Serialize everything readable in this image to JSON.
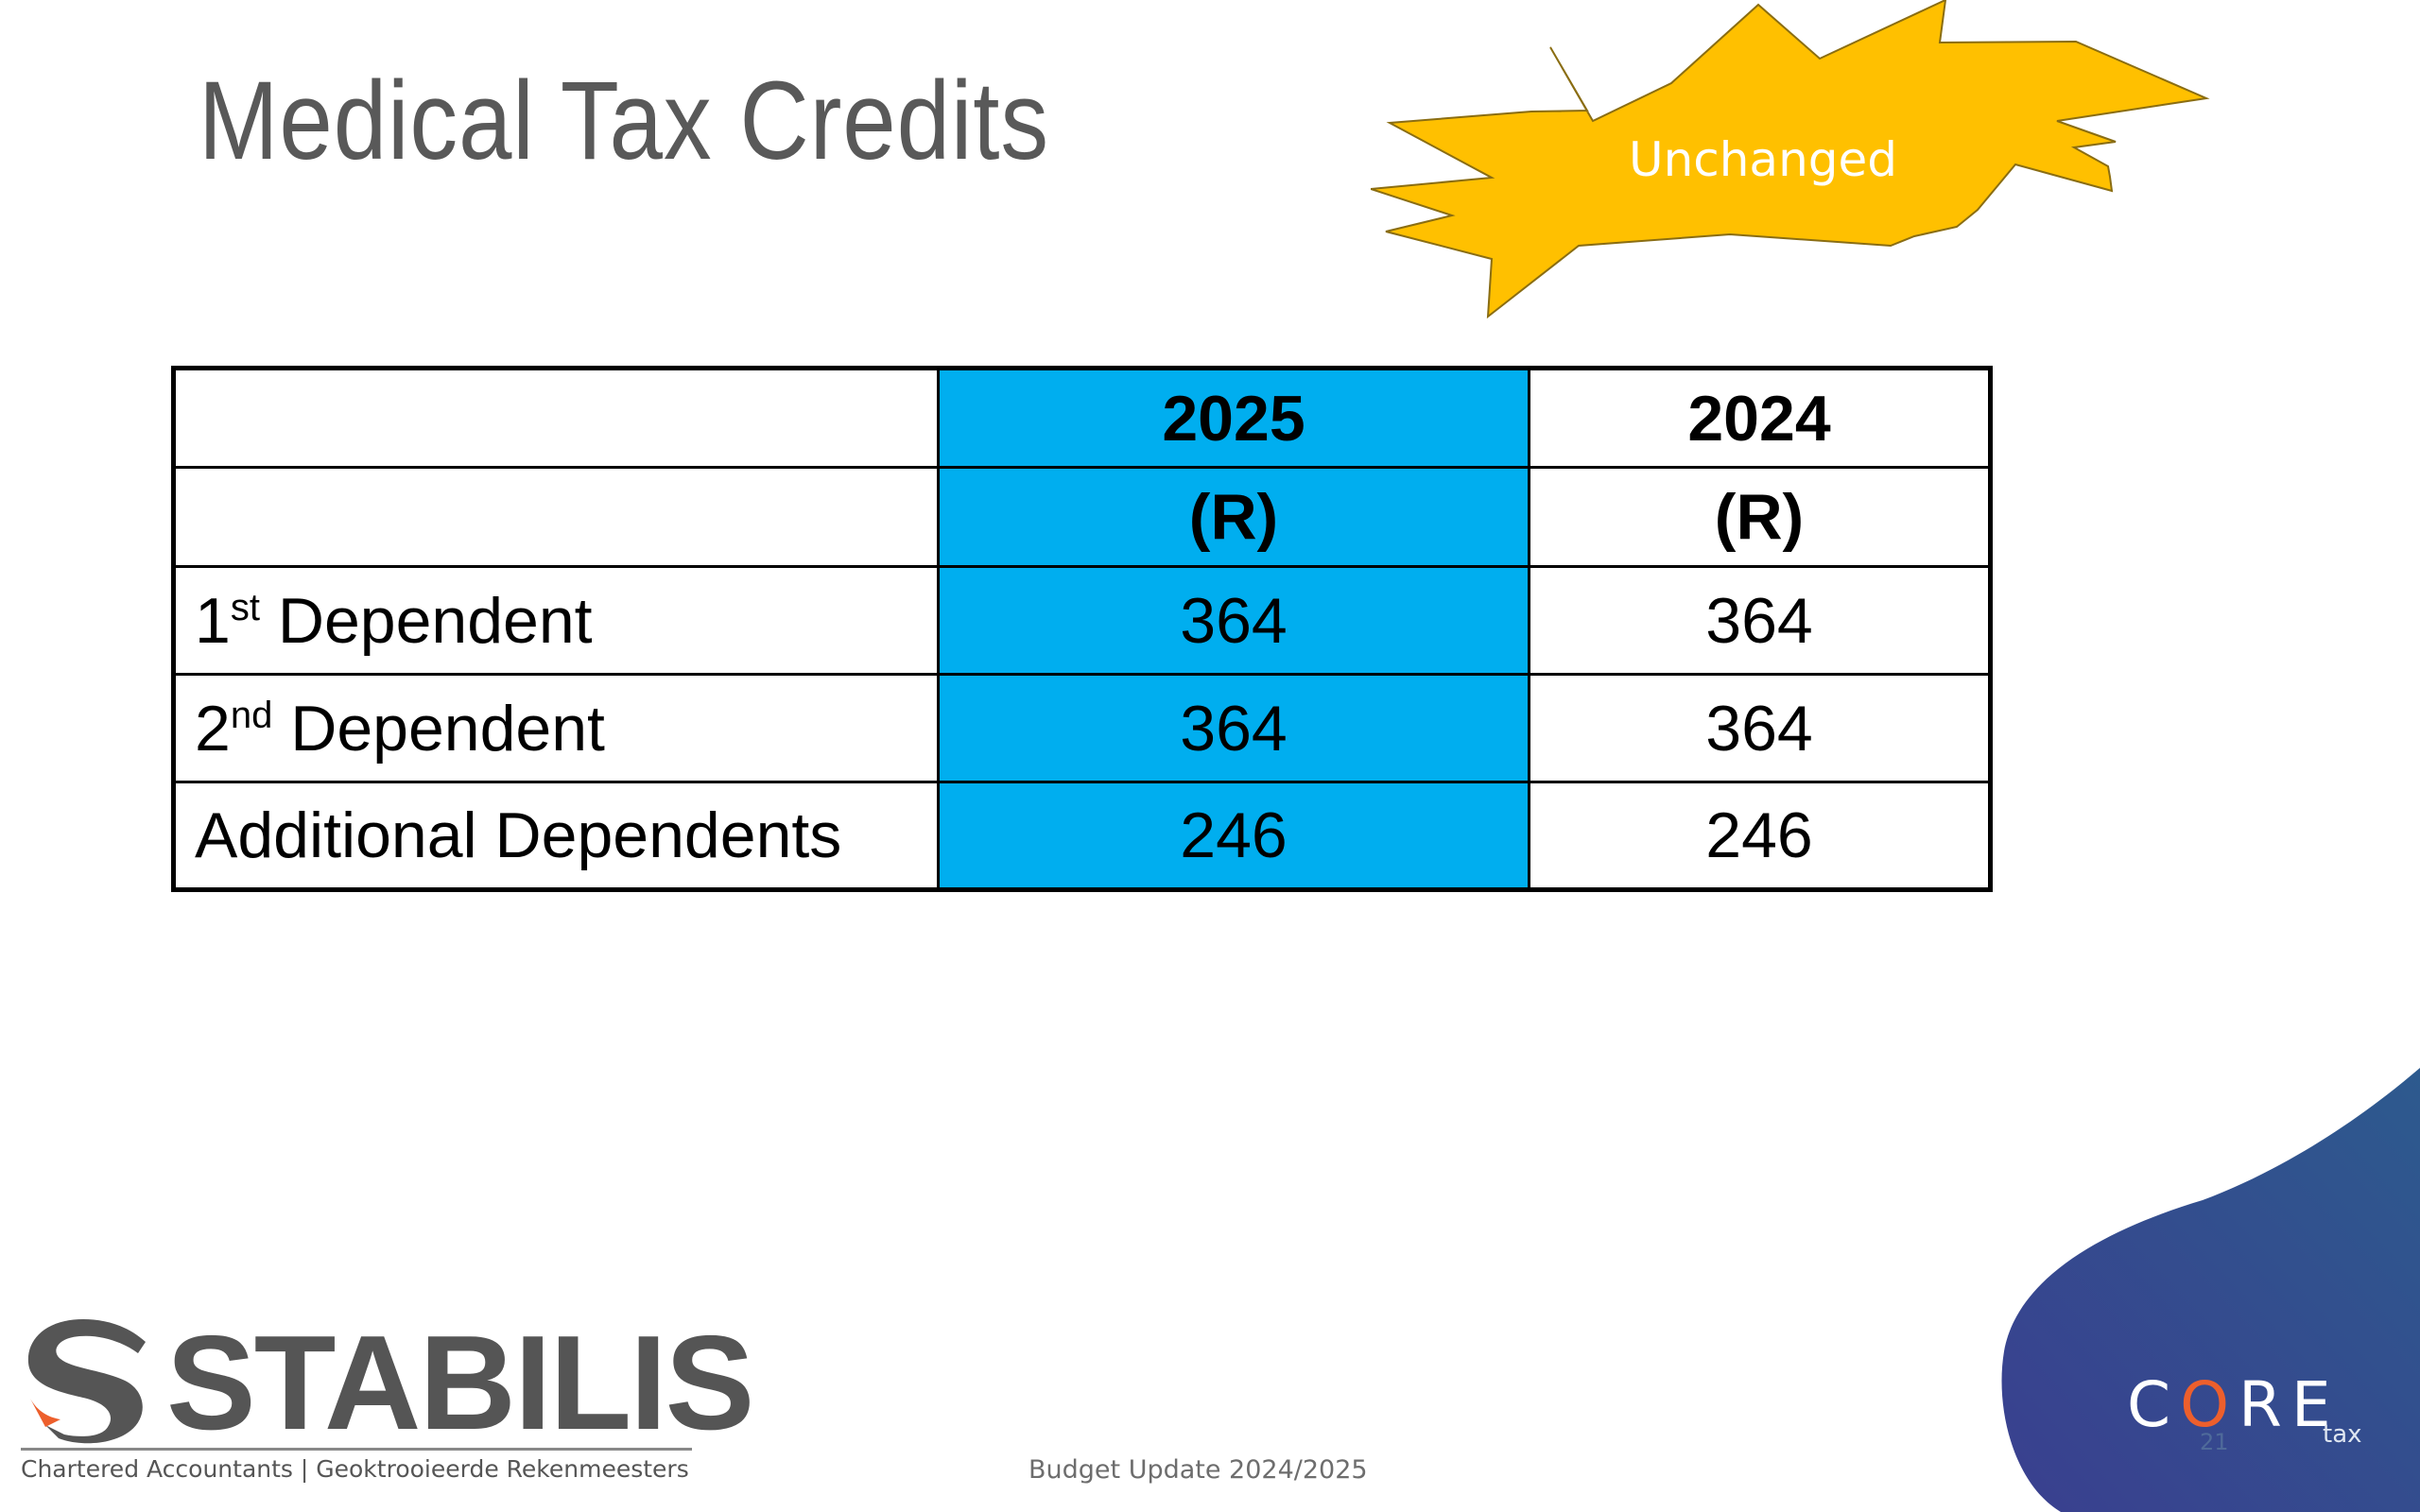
{
  "slide": {
    "title": "Medical Tax Credits",
    "badge": "Unchanged",
    "footer": "Budget Update 2024/2025",
    "page_number": "21"
  },
  "table": {
    "columns": [
      "2025",
      "2024"
    ],
    "units": [
      "(R)",
      "(R)"
    ],
    "rows": [
      {
        "label_num": "1",
        "label_sup": "st",
        "label_rest": " Dependent",
        "values": [
          "364",
          "364"
        ]
      },
      {
        "label_num": "2",
        "label_sup": "nd",
        "label_rest": " Dependent",
        "values": [
          "364",
          "364"
        ]
      },
      {
        "label": "Additional Dependents",
        "values": [
          "246",
          "246"
        ]
      }
    ]
  },
  "branding": {
    "stabilis_logo": "STABILIS",
    "stabilis_tagline": "Chartered Accountants | Geoktrooieerde Rekenmeesters",
    "core_logo_left": "C",
    "core_logo_o": "O",
    "core_logo_right": "RE",
    "core_logo_sub": "tax"
  },
  "colors": {
    "highlight_column": "#00aeef",
    "year_2024": "#ed7d31",
    "badge_fill": "#ffc000",
    "title_text": "#595959",
    "corner_panel": "#2e4787"
  },
  "icons": [
    "starburst-shape",
    "stabilis-s-icon",
    "core-tax-logo"
  ]
}
